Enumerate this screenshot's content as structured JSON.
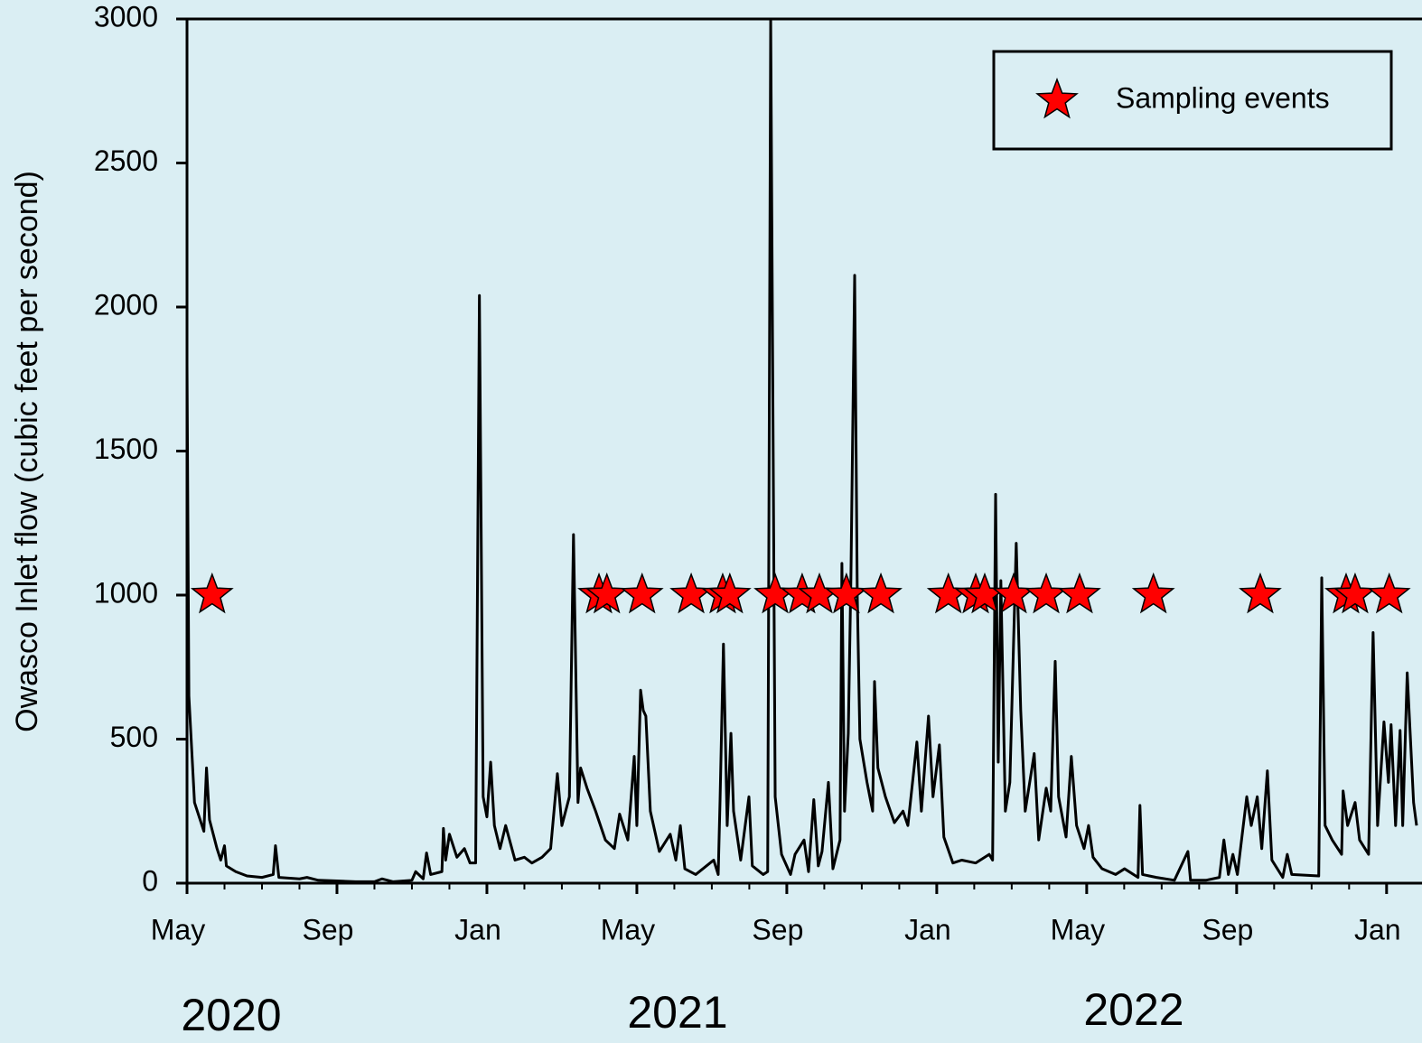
{
  "chart_data": {
    "type": "line",
    "y_label": "Owasco Inlet flow (cubic feet per second)",
    "year_labels": [
      "2020",
      "2021",
      "2022"
    ],
    "ylim": [
      0,
      3000
    ],
    "yticks": [
      0,
      500,
      1000,
      1500,
      2000,
      2500,
      3000
    ],
    "xlim": [
      0,
      32.8
    ],
    "xticks": [
      {
        "value": 0,
        "label": "May"
      },
      {
        "value": 4,
        "label": "Sep"
      },
      {
        "value": 8,
        "label": "Jan"
      },
      {
        "value": 12,
        "label": "May"
      },
      {
        "value": 16,
        "label": "Sep"
      },
      {
        "value": 20,
        "label": "Jan"
      },
      {
        "value": 24,
        "label": "May"
      },
      {
        "value": 28,
        "label": "Sep"
      },
      {
        "value": 32,
        "label": "Jan"
      }
    ],
    "xminorticks": [
      1,
      2,
      3,
      5,
      6,
      7,
      9,
      10,
      11,
      13,
      14,
      15,
      17,
      18,
      19,
      21,
      22,
      23,
      25,
      26,
      27,
      29,
      30,
      31
    ],
    "legend": "upper right",
    "series": [
      {
        "type": "line",
        "color": "#000000",
        "x": [
          0,
          0.05,
          0.2,
          0.45,
          0.52,
          0.6,
          0.8,
          0.9,
          1.0,
          1.05,
          1.3,
          1.6,
          2.0,
          2.3,
          2.36,
          2.45,
          3.0,
          3.2,
          3.5,
          4.0,
          4.5,
          5.0,
          5.2,
          5.5,
          6.0,
          6.1,
          6.3,
          6.39,
          6.5,
          6.8,
          6.84,
          6.9,
          7.0,
          7.2,
          7.4,
          7.55,
          7.7,
          7.8,
          7.9,
          8.0,
          8.1,
          8.2,
          8.35,
          8.5,
          8.75,
          9.0,
          9.2,
          9.47,
          9.7,
          9.88,
          10.0,
          10.2,
          10.31,
          10.43,
          10.5,
          10.67,
          10.9,
          11.16,
          11.4,
          11.54,
          11.76,
          11.93,
          12.0,
          12.1,
          12.17,
          12.24,
          12.36,
          12.6,
          12.89,
          13.04,
          13.16,
          13.28,
          13.57,
          14.05,
          14.17,
          14.22,
          14.31,
          14.41,
          14.51,
          14.58,
          14.77,
          14.99,
          15.08,
          15.37,
          15.49,
          15.57,
          15.69,
          15.86,
          16.1,
          16.22,
          16.46,
          16.58,
          16.72,
          16.84,
          16.94,
          17.11,
          17.23,
          17.42,
          17.47,
          17.54,
          17.64,
          17.71,
          17.81,
          17.88,
          17.95,
          18.14,
          18.29,
          18.34,
          18.43,
          18.63,
          18.87,
          19.1,
          19.23,
          19.47,
          19.59,
          19.78,
          19.9,
          20.07,
          20.19,
          20.43,
          20.67,
          21.04,
          21.4,
          21.49,
          21.57,
          21.64,
          21.71,
          21.83,
          21.95,
          22.12,
          22.24,
          22.36,
          22.6,
          22.72,
          22.92,
          23.04,
          23.16,
          23.25,
          23.45,
          23.59,
          23.73,
          23.93,
          24.05,
          24.17,
          24.41,
          24.77,
          25.01,
          25.37,
          25.42,
          25.49,
          25.86,
          26.34,
          26.7,
          26.77,
          27.18,
          27.54,
          27.66,
          27.78,
          27.9,
          28.02,
          28.27,
          28.39,
          28.55,
          28.67,
          28.82,
          28.94,
          29.23,
          29.35,
          29.47,
          30.19,
          30.27,
          30.36,
          30.55,
          30.8,
          30.84,
          30.96,
          31.16,
          31.28,
          31.52,
          31.64,
          31.76,
          31.93,
          32.05,
          32.12,
          32.24,
          32.36,
          32.43,
          32.55,
          32.72,
          32.8
        ],
        "values": [
          1800,
          650,
          280,
          180,
          400,
          220,
          120,
          80,
          130,
          60,
          40,
          25,
          20,
          30,
          130,
          20,
          15,
          20,
          10,
          8,
          5,
          5,
          15,
          5,
          10,
          40,
          15,
          105,
          30,
          40,
          190,
          80,
          170,
          90,
          120,
          70,
          70,
          2040,
          300,
          230,
          420,
          200,
          120,
          200,
          80,
          90,
          70,
          90,
          120,
          380,
          200,
          300,
          1210,
          280,
          400,
          330,
          250,
          150,
          120,
          240,
          150,
          440,
          200,
          670,
          600,
          580,
          250,
          110,
          170,
          80,
          200,
          50,
          30,
          80,
          30,
          290,
          830,
          200,
          520,
          250,
          80,
          300,
          60,
          30,
          40,
          3000,
          300,
          100,
          30,
          100,
          150,
          40,
          290,
          60,
          110,
          350,
          50,
          150,
          1110,
          250,
          520,
          1060,
          2110,
          1000,
          500,
          350,
          250,
          700,
          400,
          300,
          210,
          250,
          200,
          490,
          250,
          580,
          300,
          480,
          160,
          70,
          80,
          70,
          100,
          80,
          1350,
          420,
          1050,
          250,
          350,
          1180,
          600,
          250,
          450,
          150,
          330,
          250,
          770,
          300,
          160,
          440,
          200,
          120,
          200,
          90,
          50,
          30,
          50,
          20,
          270,
          30,
          20,
          10,
          110,
          10,
          10,
          20,
          150,
          30,
          100,
          30,
          300,
          200,
          300,
          120,
          390,
          80,
          20,
          100,
          30,
          25,
          1060,
          200,
          150,
          100,
          320,
          200,
          280,
          150,
          100,
          870,
          200,
          560,
          350,
          550,
          200,
          530,
          200,
          730,
          280,
          200
        ]
      },
      {
        "type": "scatter",
        "marker": "star",
        "name": "Sampling events",
        "color": "#ff0000",
        "x": [
          0.67,
          10.99,
          11.2,
          12.14,
          13.45,
          14.29,
          14.48,
          15.69,
          16.41,
          16.87,
          17.59,
          18.51,
          20.31,
          21.04,
          21.28,
          22.05,
          22.92,
          23.81,
          25.78,
          28.63,
          30.92,
          31.16,
          32.07
        ],
        "values": [
          1000,
          1000,
          1000,
          1000,
          1000,
          1000,
          1000,
          1000,
          1000,
          1000,
          1000,
          1000,
          1000,
          1000,
          1000,
          1000,
          1000,
          1000,
          1000,
          1000,
          1000,
          1000,
          1000
        ]
      }
    ]
  }
}
